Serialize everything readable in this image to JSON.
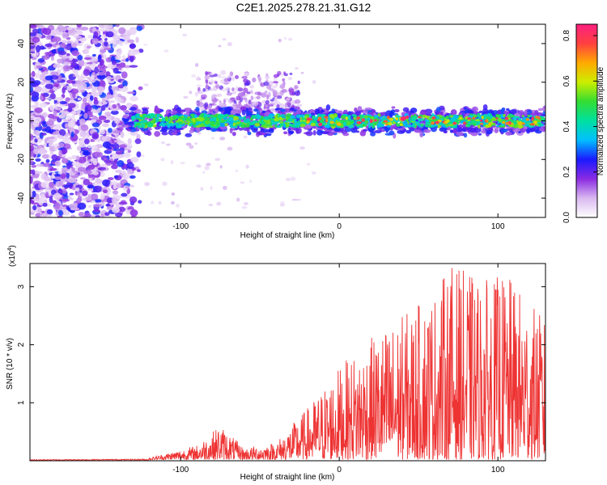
{
  "chart_data": [
    {
      "type": "heatmap",
      "title": "C2E1.2025.278.21.31.G12",
      "xlabel": "Height of straight line (km)",
      "ylabel": "Frequency (Hz)",
      "xlim": [
        -195,
        130
      ],
      "ylim": [
        -50,
        50
      ],
      "xticks": [
        -100,
        0,
        100
      ],
      "yticks": [
        -40,
        -20,
        0,
        20,
        40
      ],
      "colorbar": {
        "label": "Normalized spectral amplitude",
        "range": [
          0.0,
          0.85
        ],
        "ticks": [
          "0.0",
          "0.2",
          "0.4",
          "0.6",
          "0.8"
        ],
        "stops": [
          "#ffffff",
          "#d9b8f0",
          "#8a2be2",
          "#1a1aff",
          "#00bfff",
          "#00e0a0",
          "#33dd33",
          "#ccee00",
          "#ffaa00",
          "#ff4040",
          "#ff2080"
        ]
      },
      "regions": [
        {
          "name": "broadband noise",
          "x_range": [
            -195,
            -125
          ],
          "freq_range": [
            -50,
            50
          ]
        },
        {
          "name": "signal band",
          "x_range": [
            -135,
            130
          ],
          "center_freq": 0,
          "half_width": 6
        },
        {
          "name": "upper spread",
          "x_range": [
            -90,
            -25
          ],
          "freq_range": [
            5,
            25
          ]
        }
      ]
    },
    {
      "type": "line",
      "xlabel": "Height of straight line (km)",
      "ylabel": "SNR (10 * v/v)",
      "multiplier_label": "(x10",
      "multiplier_exp": "4",
      "multiplier_close": ")",
      "xlim": [
        -195,
        130
      ],
      "ylim": [
        0,
        3.4
      ],
      "xticks": [
        -100,
        0,
        100
      ],
      "yticks": [
        1,
        2,
        3
      ],
      "color": "#ee3333",
      "envelope": [
        {
          "x": -195,
          "y": 0.02
        },
        {
          "x": -120,
          "y": 0.03
        },
        {
          "x": -90,
          "y": 0.25
        },
        {
          "x": -75,
          "y": 0.6
        },
        {
          "x": -60,
          "y": 0.2
        },
        {
          "x": -40,
          "y": 0.3
        },
        {
          "x": -20,
          "y": 0.9
        },
        {
          "x": 0,
          "y": 1.6
        },
        {
          "x": 20,
          "y": 2.1
        },
        {
          "x": 40,
          "y": 2.5
        },
        {
          "x": 60,
          "y": 2.9
        },
        {
          "x": 70,
          "y": 3.4
        },
        {
          "x": 90,
          "y": 3.1
        },
        {
          "x": 105,
          "y": 3.2
        },
        {
          "x": 115,
          "y": 2.9
        },
        {
          "x": 130,
          "y": 2.4
        }
      ]
    }
  ]
}
